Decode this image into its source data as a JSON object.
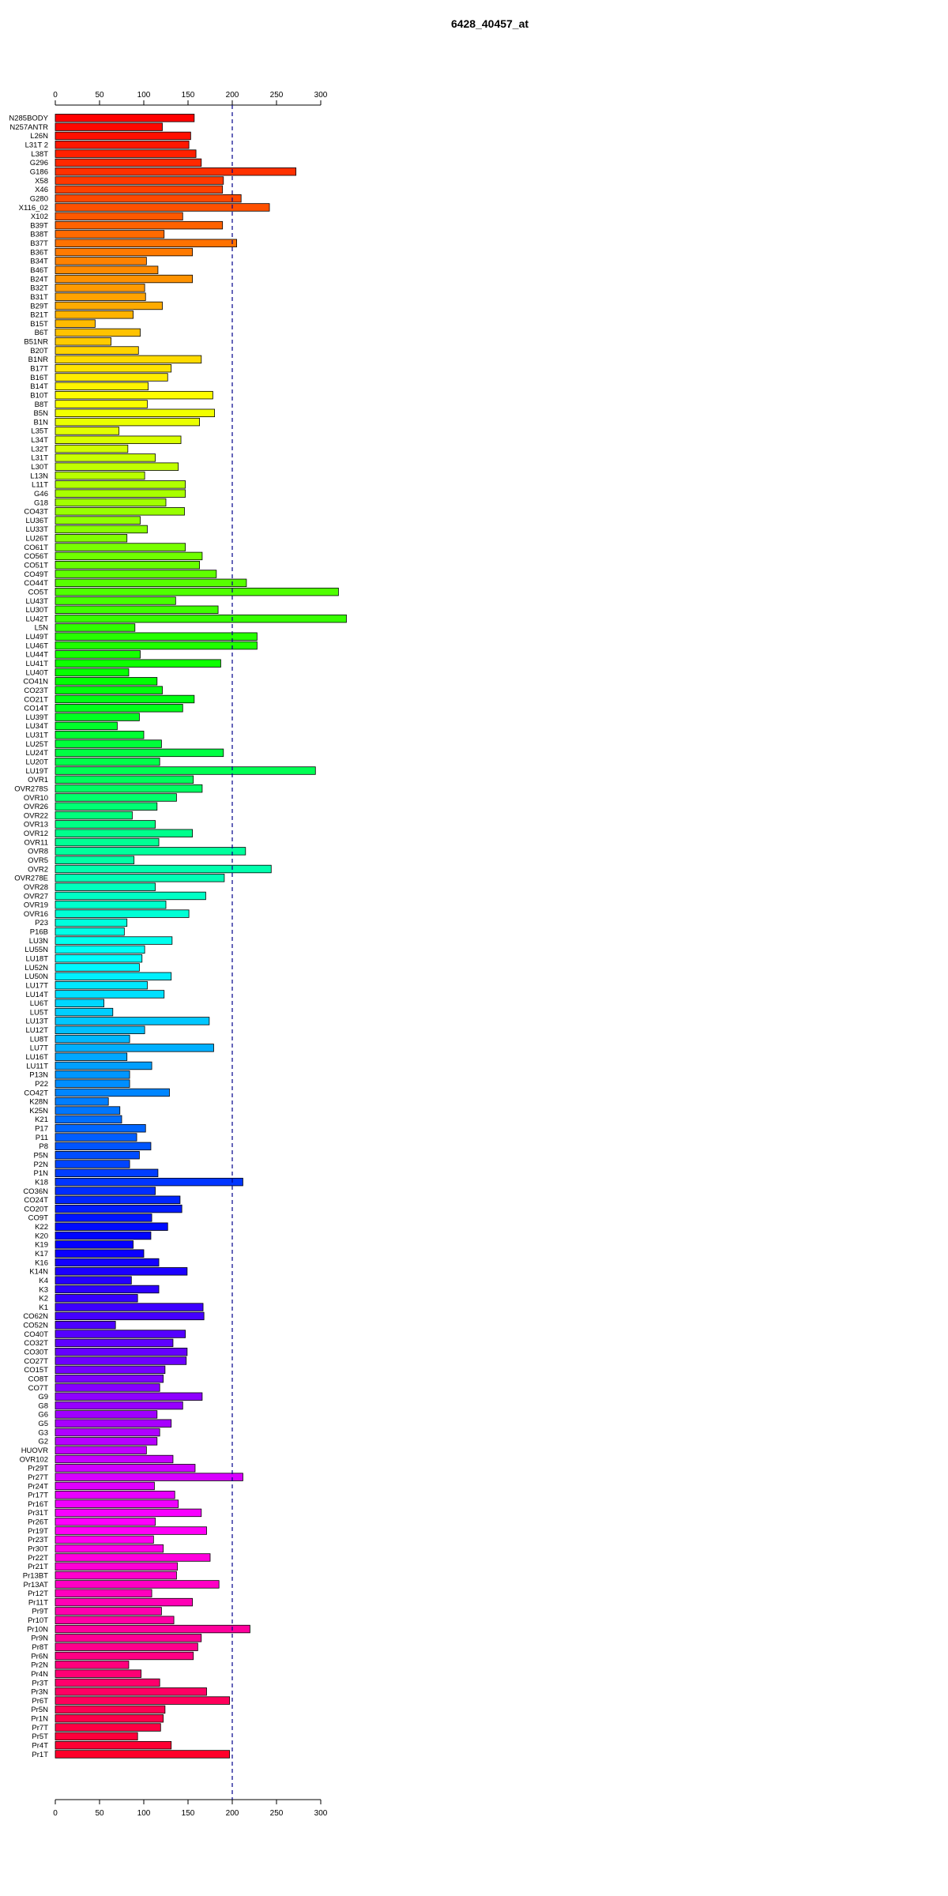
{
  "chart_data": {
    "type": "bar",
    "orientation": "horizontal",
    "title": "6428_40457_at",
    "xlabel": "",
    "ylabel": "",
    "xlim": [
      0,
      330
    ],
    "x_ticks": [
      0,
      50,
      100,
      150,
      200,
      250,
      300
    ],
    "reference_line": 200,
    "grid": false,
    "legend": "none",
    "colors": "rainbow gradient red → magenta → blue → cyan → green → yellow → orange → red",
    "categories": [
      "N285BODY",
      "N257ANTR",
      "L26N",
      "L31T 2",
      "L38T",
      "G296",
      "G186",
      "X58",
      "X46",
      "G280",
      "X116_02",
      "X102",
      "B39T",
      "B38T",
      "B37T",
      "B36T",
      "B34T",
      "B46T",
      "B24T",
      "B32T",
      "B31T",
      "B29T",
      "B21T",
      "B15T",
      "B6T",
      "B51NR",
      "B20T",
      "B1NR",
      "B17T",
      "B16T",
      "B14T",
      "B10T",
      "B8T",
      "B5N",
      "B1N",
      "L35T",
      "L34T",
      "L32T",
      "L31T",
      "L30T",
      "L13N",
      "L11T",
      "G46",
      "G18",
      "CO43T",
      "LU36T",
      "LU33T",
      "LU26T",
      "CO61T",
      "CO56T",
      "CO51T",
      "CO49T",
      "CO44T",
      "CO5T",
      "LU43T",
      "LU30T",
      "LU42T",
      "L5N",
      "LU49T",
      "LU46T",
      "LU44T",
      "LU41T",
      "LU40T",
      "CO41N",
      "CO23T",
      "CO21T",
      "CO14T",
      "LU39T",
      "LU34T",
      "LU31T",
      "LU25T",
      "LU24T",
      "LU20T",
      "LU19T",
      "OVR1",
      "OVR278S",
      "OVR10",
      "OVR26",
      "OVR22",
      "OVR13",
      "OVR12",
      "OVR11",
      "OVR8",
      "OVR5",
      "OVR2",
      "OVR278E",
      "OVR28",
      "OVR27",
      "OVR19",
      "OVR16",
      "P23",
      "P16B",
      "LU3N",
      "LU55N",
      "LU18T",
      "LU52N",
      "LU50N",
      "LU17T",
      "LU14T",
      "LU6T",
      "LU5T",
      "LU13T",
      "LU12T",
      "LU8T",
      "LU7T",
      "LU16T",
      "LU11T",
      "P13N",
      "P22",
      "CO42T",
      "K28N",
      "K25N",
      "K21",
      "P17",
      "P11",
      "P8",
      "P5N",
      "P2N",
      "P1N",
      "K18",
      "CO36N",
      "CO24T",
      "CO20T",
      "CO9T",
      "K22",
      "K20",
      "K19",
      "K17",
      "K16",
      "K14N",
      "K4",
      "K3",
      "K2",
      "K1",
      "CO62N",
      "CO52N",
      "CO40T",
      "CO32T",
      "CO30T",
      "CO27T",
      "CO15T",
      "CO8T",
      "CO7T",
      "G9",
      "G8",
      "G6",
      "G5",
      "G3",
      "G2",
      "HUOVR",
      "OVR102",
      "Pr29T",
      "Pr27T",
      "Pr24T",
      "Pr17T",
      "Pr16T",
      "Pr31T",
      "Pr26T",
      "Pr19T",
      "Pr23T",
      "Pr30T",
      "Pr22T",
      "Pr21T",
      "Pr13BT",
      "Pr13AT",
      "Pr12T",
      "Pr11T",
      "Pr9T",
      "Pr10T",
      "Pr10N",
      "Pr9N",
      "Pr8T",
      "Pr6N",
      "Pr2N",
      "Pr4N",
      "Pr3T",
      "Pr3N",
      "Pr6T",
      "Pr5N",
      "Pr1N",
      "Pr7T",
      "Pr5T",
      "Pr4T",
      "Pr1T"
    ],
    "values": [
      157,
      121,
      153,
      151,
      159,
      165,
      272,
      190,
      189,
      210,
      242,
      144,
      189,
      123,
      205,
      155,
      103,
      116,
      155,
      101,
      102,
      121,
      88,
      45,
      96,
      63,
      94,
      165,
      131,
      127,
      105,
      178,
      104,
      180,
      163,
      72,
      142,
      82,
      113,
      139,
      101,
      147,
      147,
      125,
      146,
      96,
      104,
      81,
      147,
      166,
      163,
      182,
      216,
      320,
      136,
      184,
      329,
      90,
      228,
      228,
      96,
      187,
      83,
      115,
      121,
      157,
      144,
      95,
      70,
      100,
      120,
      190,
      118,
      294,
      156,
      166,
      137,
      115,
      87,
      113,
      155,
      117,
      215,
      89,
      244,
      191,
      113,
      170,
      125,
      151,
      81,
      78,
      132,
      101,
      98,
      95,
      131,
      104,
      123,
      55,
      65,
      174,
      101,
      84,
      179,
      81,
      109,
      84,
      84,
      129,
      60,
      73,
      75,
      102,
      92,
      108,
      95,
      84,
      116,
      212,
      113,
      141,
      143,
      109,
      127,
      108,
      88,
      100,
      117,
      149,
      86,
      117,
      93,
      167,
      168,
      68,
      147,
      133,
      149,
      148,
      124,
      122,
      118,
      166,
      144,
      115,
      131,
      118,
      115,
      103,
      133,
      158,
      212,
      112,
      135,
      139,
      165,
      113,
      171,
      111,
      122,
      175,
      138,
      137,
      185,
      109,
      155,
      120,
      134,
      220,
      165,
      161,
      156,
      83,
      97,
      118,
      171,
      197,
      124,
      122,
      119,
      93,
      131,
      197
    ]
  }
}
